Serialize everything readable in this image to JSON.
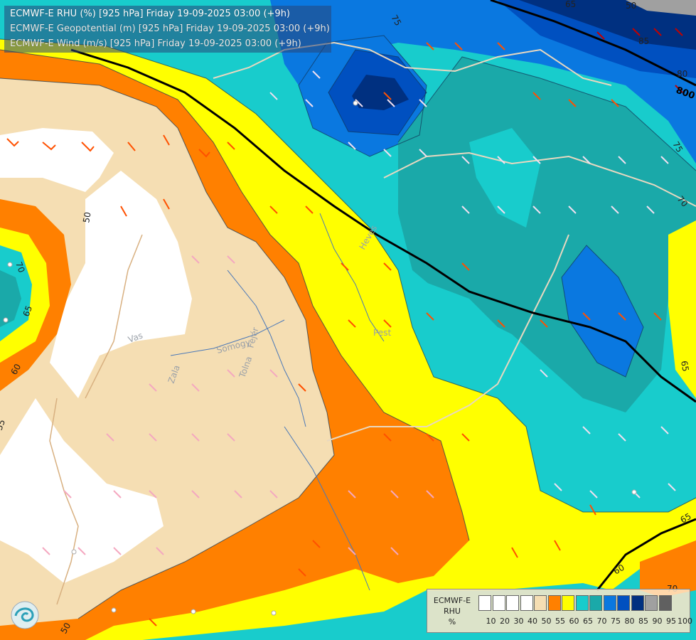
{
  "header": {
    "line1": "ECMWF-E RHU (%) [925 hPa] Friday 19-09-2025 03:00 (+9h)",
    "line2": "ECMWF-E Geopotential (m) [925 hPa] Friday 19-09-2025 03:00 (+9h)",
    "line3": "ECMWF-E Wind (m/s) [925 hPa] Friday 19-09-2025 03:00 (+9h)"
  },
  "legend": {
    "title_line1": "ECMWF-E",
    "title_line2": "RHU",
    "title_line3": "%",
    "levels": [
      "10",
      "20",
      "30",
      "40",
      "50",
      "55",
      "60",
      "65",
      "70",
      "75",
      "80",
      "85",
      "90",
      "95",
      "100"
    ],
    "colors": [
      "#ffffff",
      "#ffffff",
      "#ffffff",
      "#ffffff",
      "#f5deb3",
      "#ff8000",
      "#ffff00",
      "#18cccc",
      "#1aa9a9",
      "#0a78e0",
      "#0050c0",
      "#003080",
      "#a0a0a0",
      "#606060"
    ]
  },
  "map_labels": {
    "contours": [
      "75",
      "85",
      "80",
      "75",
      "70",
      "70",
      "65",
      "65",
      "60",
      "55",
      "50",
      "50",
      "60",
      "65",
      "70",
      "50",
      "65"
    ],
    "geopotential": "800",
    "places": [
      "Pest",
      "Vas",
      "Zala",
      "Somogy",
      "Tolna",
      "Fejér",
      "Heves"
    ]
  },
  "palette": {
    "white": "#ffffff",
    "tan": "#f5deb3",
    "orange": "#ff8000",
    "yellow": "#ffff00",
    "cyan": "#18cccc",
    "teal": "#1aa9a9",
    "blue": "#0a78e0",
    "darkblue": "#0050c0",
    "navy": "#003080"
  },
  "icons": [
    "ecmwf-logo-icon",
    "wind-barb-icon"
  ]
}
